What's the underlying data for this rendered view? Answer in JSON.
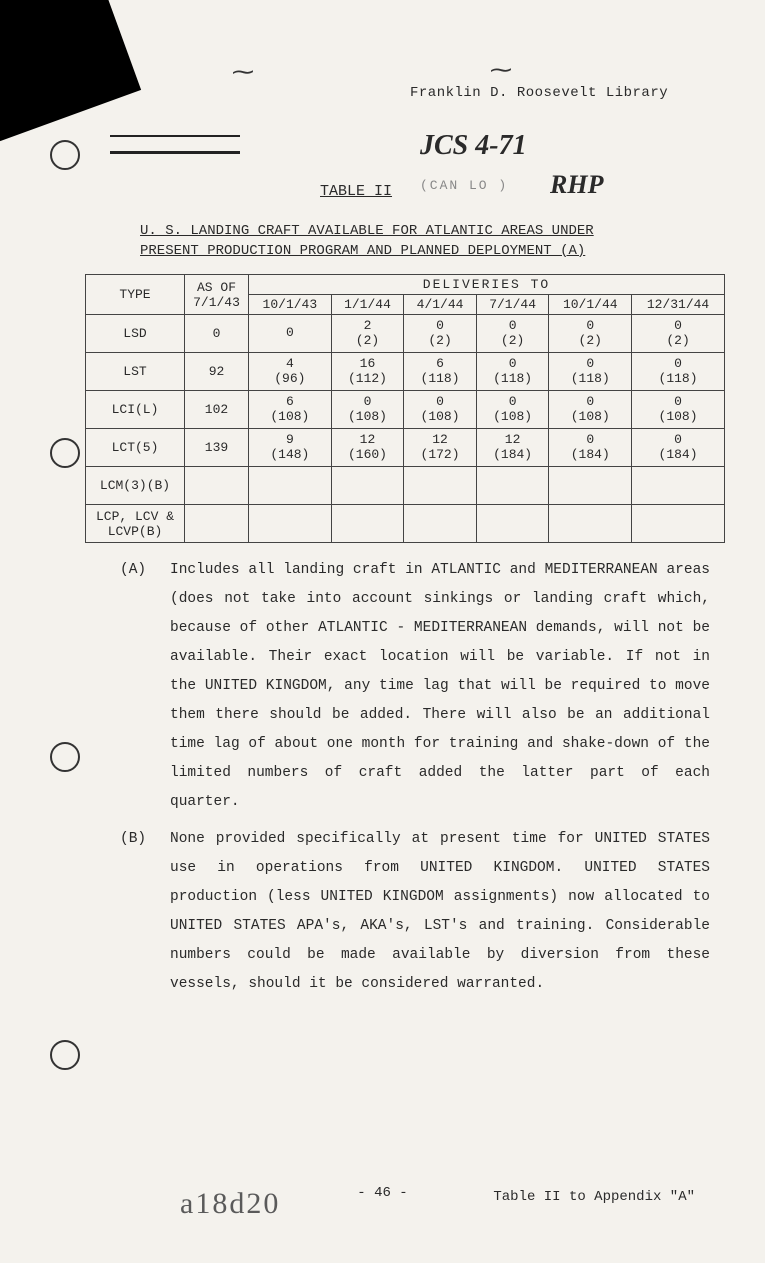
{
  "background_color": "#f4f2ed",
  "text_color": "#2a2a2a",
  "font_family": "Courier New",
  "header": {
    "library_stamp": "Franklin D. Roosevelt Library",
    "jcs": "JCS 4-71",
    "faint": "(CAN LO   )",
    "rhp": "RHP",
    "table_label": "TABLE II"
  },
  "title_line1": "U. S. LANDING CRAFT AVAILABLE FOR ATLANTIC AREAS UNDER",
  "title_line2": "PRESENT PRODUCTION PROGRAM AND PLANNED DEPLOYMENT (A)",
  "table": {
    "type": "table",
    "border_color": "#444",
    "font_size": 13,
    "col_type": "TYPE",
    "col_asof": "AS OF\n7/1/43",
    "deliveries_header": "DELIVERIES TO",
    "date_cols": [
      "10/1/43",
      "1/1/44",
      "4/1/44",
      "7/1/44",
      "10/1/44",
      "12/31/44"
    ],
    "rows": [
      {
        "type": "LSD",
        "asof": "0",
        "cells": [
          "0",
          "2\n(2)",
          "0\n(2)",
          "0\n(2)",
          "0\n(2)",
          "0\n(2)"
        ]
      },
      {
        "type": "LST",
        "asof": "92",
        "cells": [
          "4\n(96)",
          "16\n(112)",
          "6\n(118)",
          "0\n(118)",
          "0\n(118)",
          "0\n(118)"
        ]
      },
      {
        "type": "LCI(L)",
        "asof": "102",
        "cells": [
          "6\n(108)",
          "0\n(108)",
          "0\n(108)",
          "0\n(108)",
          "0\n(108)",
          "0\n(108)"
        ]
      },
      {
        "type": "LCT(5)",
        "asof": "139",
        "cells": [
          "9\n(148)",
          "12\n(160)",
          "12\n(172)",
          "12\n(184)",
          "0\n(184)",
          "0\n(184)"
        ]
      },
      {
        "type": "LCM(3)(B)",
        "asof": "",
        "cells": [
          "",
          "",
          "",
          "",
          "",
          ""
        ]
      },
      {
        "type": "LCP, LCV &\nLCVP(B)",
        "asof": "",
        "cells": [
          "",
          "",
          "",
          "",
          "",
          ""
        ]
      }
    ]
  },
  "notes": {
    "A": "Includes all landing craft in ATLANTIC and MEDITERRANEAN areas (does not take into account sinkings or landing craft which, because of other ATLANTIC - MEDITERRANEAN demands, will not be available.  Their exact location will be variable.  If not in the UNITED KINGDOM, any time lag that will be required to move them there should be added.  There will also be an additional time lag of about one month for training and shake-down of the limited numbers of craft added the latter part of each quarter.",
    "B": "None provided specifically at present time for UNITED STATES use in operations from UNITED KINGDOM.  UNITED STATES production (less UNITED KINGDOM assignments) now allocated to UNITED STATES APA's, AKA's, LST's and training.  Considerable numbers could be made available by diversion from these vessels, should it be considered warranted."
  },
  "note_tag_A": "(A)",
  "note_tag_B": "(B)",
  "page_number": "- 46 -",
  "appendix_ref": "Table II to Appendix \"A\"",
  "doc_stamp": "a18d20"
}
